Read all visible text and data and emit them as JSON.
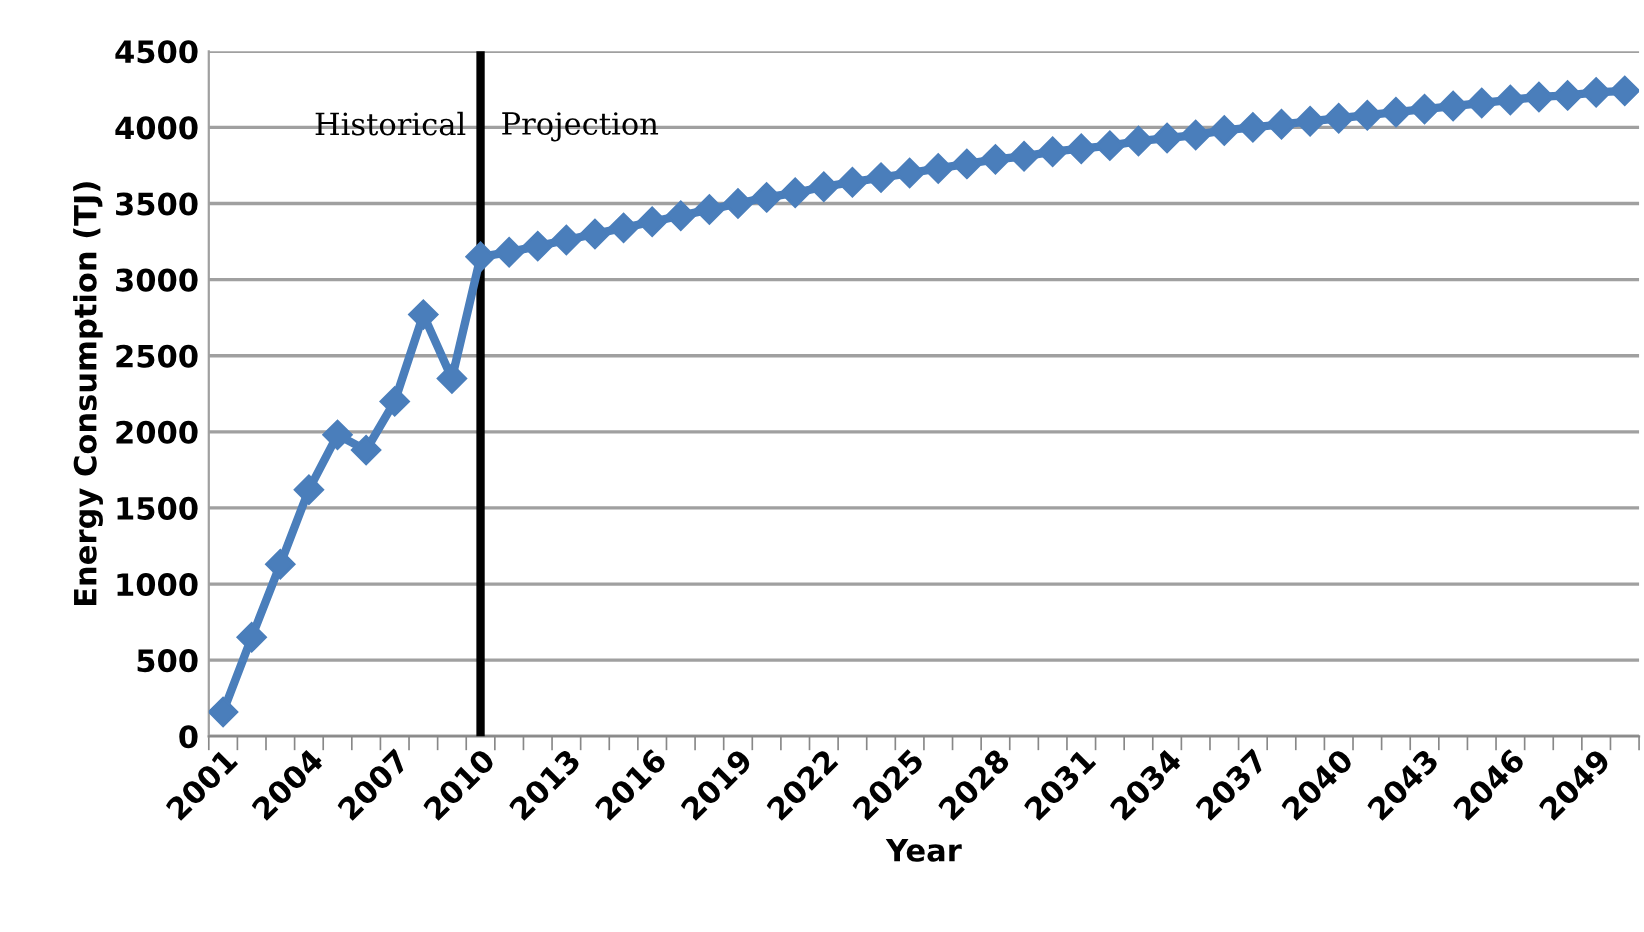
{
  "chart_data": {
    "type": "line",
    "xlabel": "Year",
    "ylabel": "Energy Consumption (TJ)",
    "categories": [
      "2001",
      null,
      null,
      "2004",
      null,
      null,
      "2007",
      null,
      null,
      "2010",
      null,
      null,
      "2013",
      null,
      null,
      "2016",
      null,
      null,
      "2019",
      null,
      null,
      "2022",
      null,
      null,
      "2025",
      null,
      null,
      "2028",
      null,
      null,
      "2031",
      null,
      null,
      "2034",
      null,
      null,
      "2037",
      null,
      null,
      "2040",
      null,
      null,
      "2043",
      null,
      null,
      "2046",
      null,
      null,
      "2049",
      null
    ],
    "series": [
      {
        "color": "#4a7ebb",
        "values": [
          160,
          650,
          1130,
          1620,
          1980,
          1880,
          2200,
          2770,
          2350,
          3150,
          3180,
          3220,
          3260,
          3300,
          3340,
          3380,
          3420,
          3460,
          3500,
          3540,
          3570,
          3610,
          3640,
          3670,
          3700,
          3730,
          3760,
          3790,
          3810,
          3840,
          3860,
          3880,
          3910,
          3930,
          3950,
          3980,
          4000,
          4020,
          4040,
          4060,
          4080,
          4100,
          4120,
          4140,
          4160,
          4180,
          4200,
          4210,
          4230,
          4240
        ]
      }
    ],
    "ylim": [
      0,
      4500
    ],
    "yticks": [
      0,
      500,
      1000,
      1500,
      2000,
      2500,
      3000,
      3500,
      4000,
      4500
    ],
    "grid": "y",
    "marker": "diamond",
    "line_style": "solid",
    "legend": false,
    "ref_lines": [
      {
        "axis": "x",
        "value": "2010",
        "color": "#000000"
      }
    ],
    "annotations": [
      "Historical",
      "Projection"
    ]
  }
}
